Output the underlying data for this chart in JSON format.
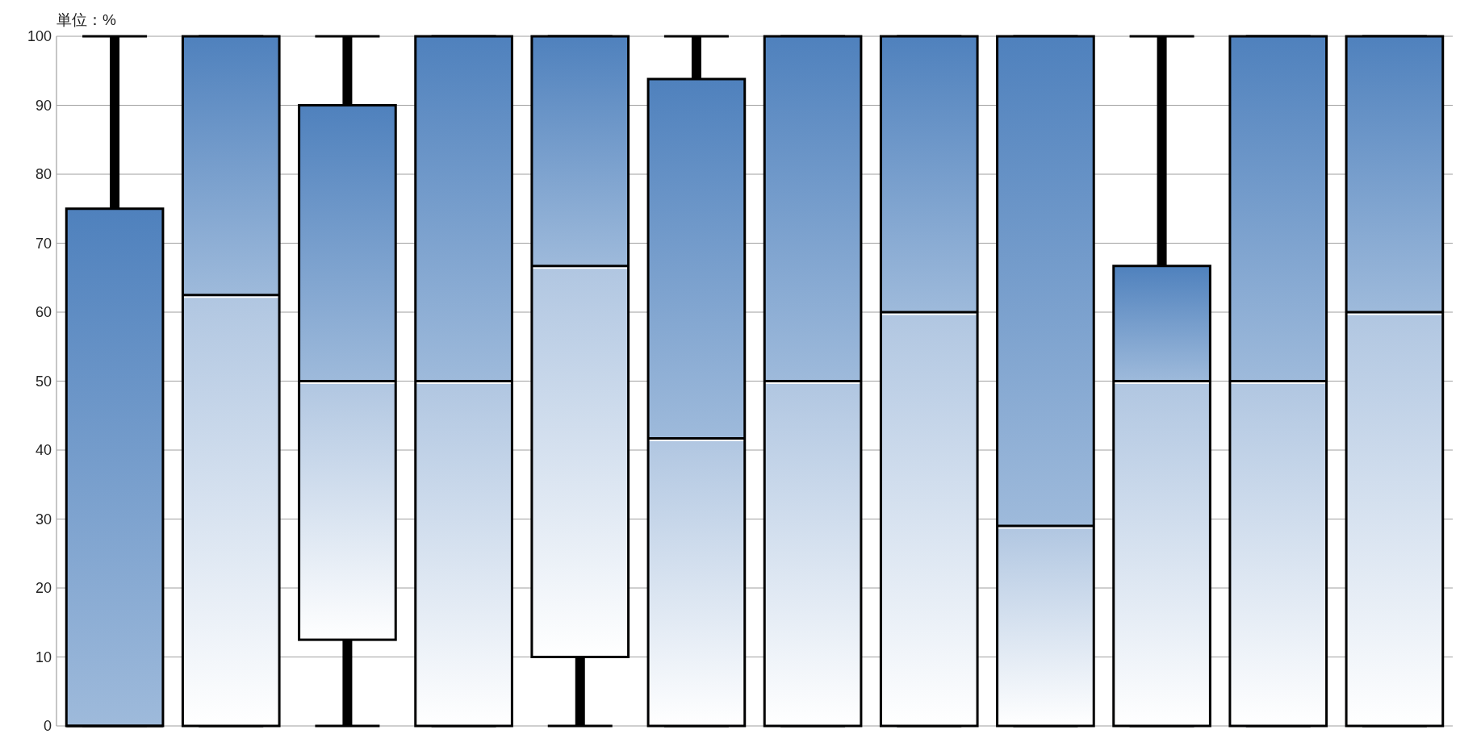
{
  "chart_data": {
    "type": "box",
    "ylabel": "単位：%",
    "categories": [
      null,
      null,
      null,
      null,
      null,
      null,
      null,
      null,
      null,
      null,
      null,
      null
    ],
    "ylim": [
      0,
      100
    ],
    "yticks": [
      0,
      10,
      20,
      30,
      40,
      50,
      60,
      70,
      80,
      90,
      100
    ],
    "grid": "y",
    "series": [
      {
        "color": "#4f81bd",
        "boxes": [
          {
            "low": 0,
            "q1": 0,
            "median": 0,
            "q3": 75,
            "high": 100
          },
          {
            "low": 0,
            "q1": 0,
            "median": 62.5,
            "q3": 100,
            "high": 100
          },
          {
            "low": 0,
            "q1": 12.5,
            "median": 50,
            "q3": 90,
            "high": 100
          },
          {
            "low": 0,
            "q1": 0,
            "median": 50,
            "q3": 100,
            "high": 100
          },
          {
            "low": 0,
            "q1": 10,
            "median": 66.7,
            "q3": 100,
            "high": 100
          },
          {
            "low": 0,
            "q1": 0,
            "median": 41.7,
            "q3": 93.8,
            "high": 100
          },
          {
            "low": 0,
            "q1": 0,
            "median": 50,
            "q3": 100,
            "high": 100
          },
          {
            "low": 0,
            "q1": 0,
            "median": 60,
            "q3": 100,
            "high": 100
          },
          {
            "low": 0,
            "q1": 0,
            "median": 29,
            "q3": 100,
            "high": 100
          },
          {
            "low": 0,
            "q1": 0,
            "median": 50,
            "q3": 66.7,
            "high": 100
          },
          {
            "low": 0,
            "q1": 0,
            "median": 50,
            "q3": 100,
            "high": 100
          },
          {
            "low": 0,
            "q1": 0,
            "median": 60,
            "q3": 100,
            "high": 100
          }
        ]
      }
    ]
  }
}
